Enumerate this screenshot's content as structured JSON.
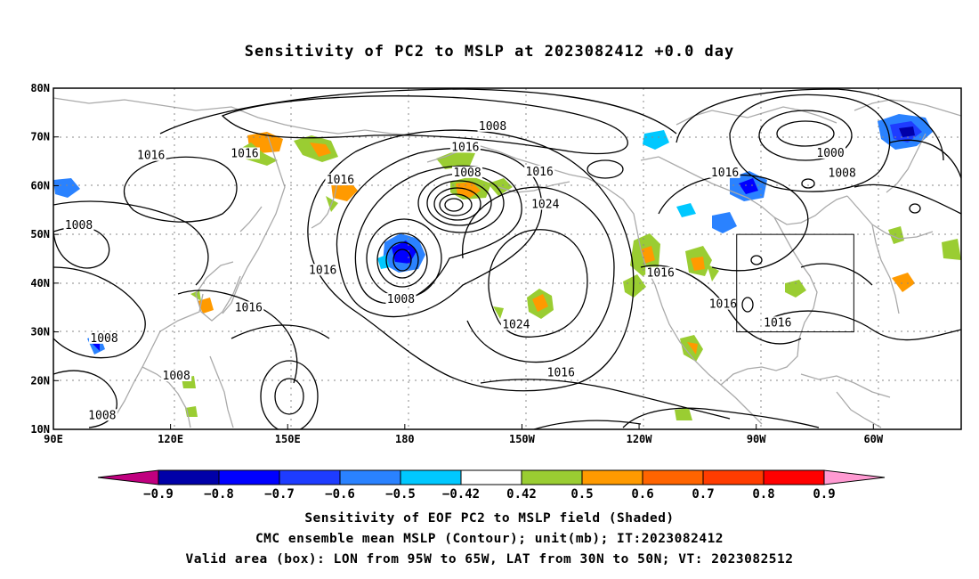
{
  "title": "Sensitivity of PC2 to MSLP at 2023082412 +0.0 day",
  "lon_ticks": [
    "90E",
    "120E",
    "150E",
    "180",
    "150W",
    "120W",
    "90W",
    "60W"
  ],
  "lat_ticks": [
    "80N",
    "70N",
    "60N",
    "50N",
    "40N",
    "30N",
    "20N",
    "10N"
  ],
  "contour_labels": [
    {
      "text": "1008",
      "lon": -157.5,
      "lat": 71.8
    },
    {
      "text": "1016",
      "lon": -164.5,
      "lat": 67.5
    },
    {
      "text": "1016",
      "lon": 115,
      "lat": 65.8
    },
    {
      "text": "1016",
      "lon": 139,
      "lat": 66.2
    },
    {
      "text": "1016",
      "lon": 163.5,
      "lat": 60.8
    },
    {
      "text": "1008",
      "lon": -164,
      "lat": 62.3
    },
    {
      "text": "1016",
      "lon": -145.5,
      "lat": 62.5
    },
    {
      "text": "1024",
      "lon": -144,
      "lat": 55.8
    },
    {
      "text": "1008",
      "lon": 96.5,
      "lat": 51.5
    },
    {
      "text": "1016",
      "lon": 159,
      "lat": 42.3
    },
    {
      "text": "1008",
      "lon": 179,
      "lat": 36.3
    },
    {
      "text": "1016",
      "lon": -114.5,
      "lat": 41.7
    },
    {
      "text": "1016",
      "lon": -98,
      "lat": 62.3
    },
    {
      "text": "1000",
      "lon": -71,
      "lat": 66.3
    },
    {
      "text": "1008",
      "lon": -68,
      "lat": 62.2
    },
    {
      "text": "1016",
      "lon": -98.5,
      "lat": 35.3
    },
    {
      "text": "1016",
      "lon": -84.5,
      "lat": 31.5
    },
    {
      "text": "1016",
      "lon": 140,
      "lat": 34.6
    },
    {
      "text": "1024",
      "lon": -151.5,
      "lat": 31.1
    },
    {
      "text": "1016",
      "lon": -140,
      "lat": 21.2
    },
    {
      "text": "1008",
      "lon": 103,
      "lat": 28.3
    },
    {
      "text": "1008",
      "lon": 121.5,
      "lat": 20.6
    },
    {
      "text": "1008",
      "lon": 102.5,
      "lat": 12.5
    }
  ],
  "valid_box": {
    "lon_min": -95,
    "lon_max": -65,
    "lat_min": 30,
    "lat_max": 50
  },
  "colorbar": {
    "colors": [
      "#c0007f",
      "#0000a8",
      "#0000ff",
      "#1e3cff",
      "#2a82ff",
      "#00c8ff",
      "#ffffff",
      "#9acd32",
      "#ff9a00",
      "#ff6400",
      "#ff3c00",
      "#ff0000",
      "#ff9ad2"
    ],
    "labels": [
      "−0.9",
      "−0.8",
      "−0.7",
      "−0.6",
      "−0.5",
      "−0.42",
      "0.42",
      "0.5",
      "0.6",
      "0.7",
      "0.8",
      "0.9"
    ]
  },
  "caption": {
    "line1": "Sensitivity of EOF PC2 to MSLP field (Shaded)",
    "line2": "CMC ensemble mean MSLP (Contour); unit(mb); IT:2023082412",
    "line3": "Valid area (box): LON from 95W to 65W, LAT from 30N to 50N; VT: 2023082512"
  }
}
